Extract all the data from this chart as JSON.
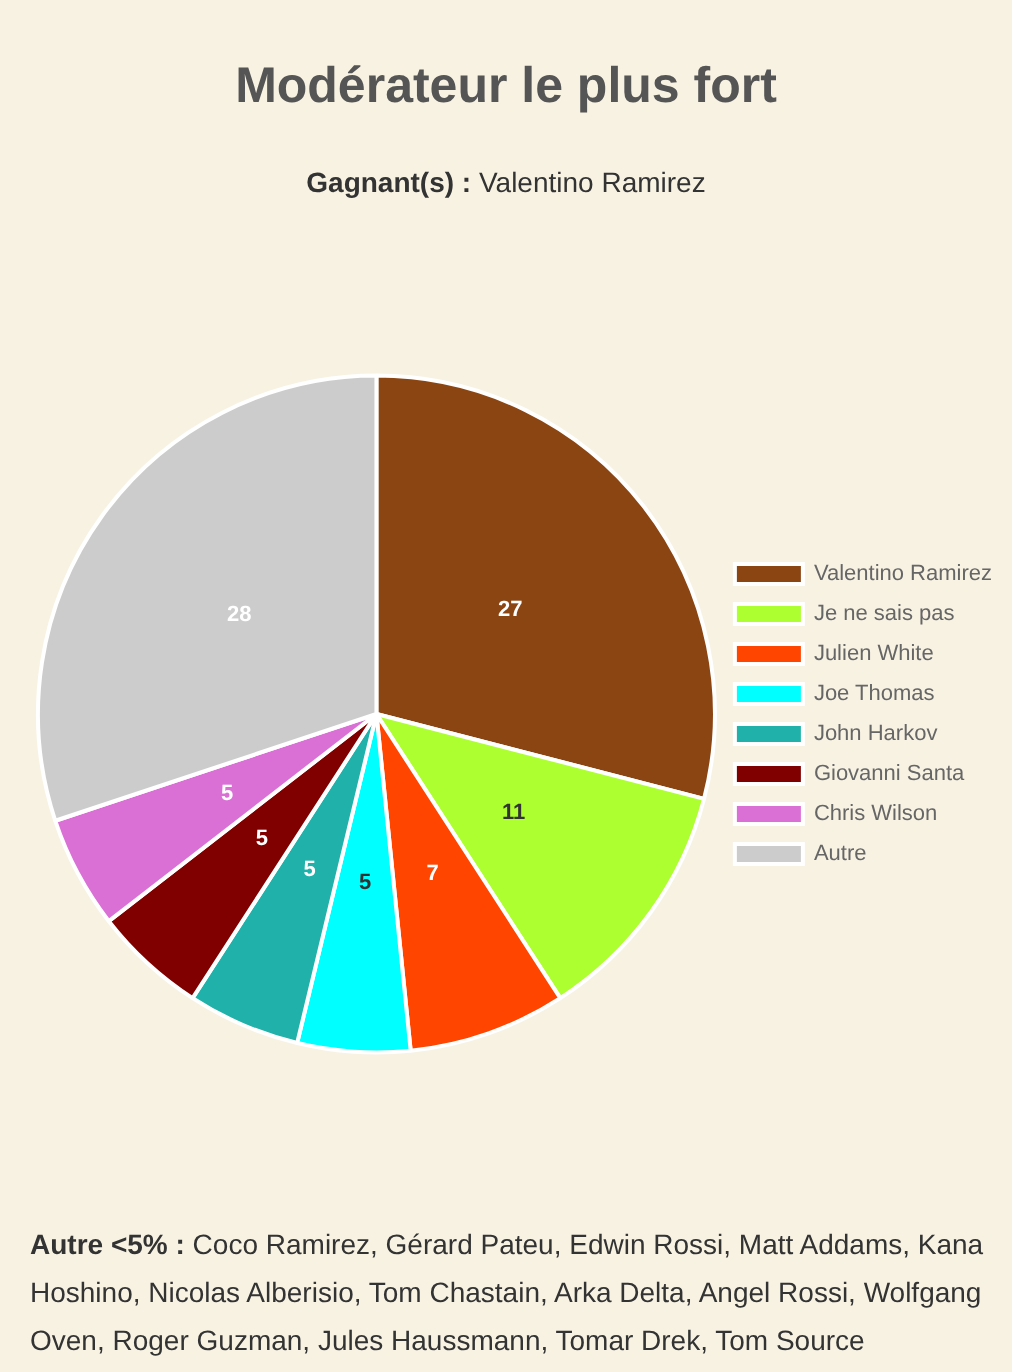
{
  "chart_data": {
    "type": "pie",
    "title": "Modérateur le plus fort",
    "subtitle": "Gagnant(s) : Valentino Ramirez",
    "categories": [
      "Valentino Ramirez",
      "Je ne sais pas",
      "Julien White",
      "Joe Thomas",
      "John Harkov",
      "Giovanni Santa",
      "Chris Wilson",
      "Autre"
    ],
    "values": [
      27,
      11,
      7,
      5,
      5,
      5,
      5,
      28
    ],
    "colors": [
      "#8b4513",
      "#adff2f",
      "#ff4500",
      "#00ffff",
      "#20b2aa",
      "#800000",
      "#da70d6",
      "#cccccc"
    ],
    "legend": "right",
    "data_labels": true,
    "annotations": [
      "Autre <5% : Coco Ramirez, Gérard Pateu, Edwin Rossi, Matt Addams, Kana Hoshino, Nicolas Alberisio, Tom Chastain, Arka Delta, Angel Rossi, Wolfgang Oven, Roger Guzman, Jules Haussmann, Tomar Drek, Tom Source"
    ]
  }
}
